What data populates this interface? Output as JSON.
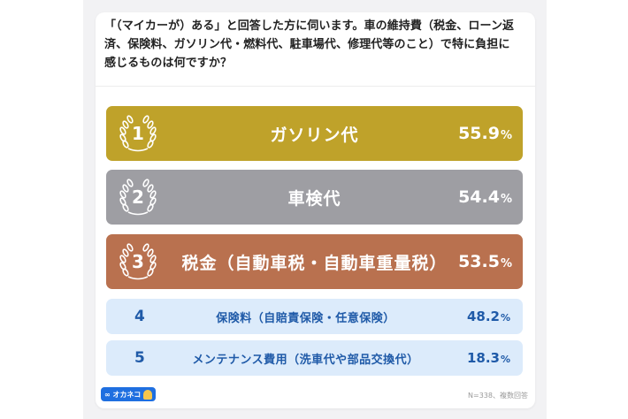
{
  "question": "「（マイカーが）ある」と回答した方に伺います。車の維持費（税金、ローン返済、保険料、ガソリン代・燃料代、駐車場代、修理代等のこと）で特に負担に感じるものは何ですか？",
  "note": "N=338、複数回答",
  "logo": {
    "text": "∞ オカネコ",
    "icon": "ghost-mascot-icon"
  },
  "colors": {
    "gold": "#bfa22a",
    "silver": "#9e9ea3",
    "bronze": "#b9714f",
    "light_blue": "#dcebfb",
    "blue_text": "#1f5aa8"
  },
  "chart_data": {
    "type": "bar",
    "unit": "%",
    "items": [
      {
        "rank": "1",
        "label": "ガソリン代",
        "value": 55.9,
        "value_text": "55.9"
      },
      {
        "rank": "2",
        "label": "車検代",
        "value": 54.4,
        "value_text": "54.4"
      },
      {
        "rank": "3",
        "label": "税金（自動車税・自動車重量税）",
        "value": 53.5,
        "value_text": "53.5"
      },
      {
        "rank": "4",
        "label": "保険料（自賠責保険・任意保険）",
        "value": 48.2,
        "value_text": "48.2"
      },
      {
        "rank": "5",
        "label": "メンテナンス費用（洗車代や部品交換代）",
        "value": 18.3,
        "value_text": "18.3"
      }
    ]
  }
}
